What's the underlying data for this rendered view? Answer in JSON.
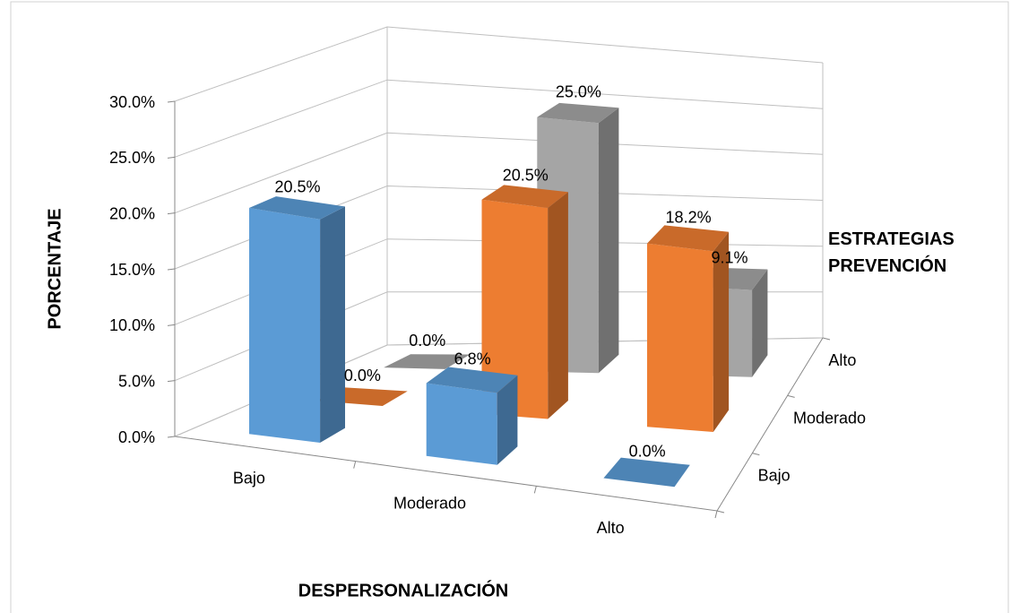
{
  "chart_data": {
    "type": "bar3d",
    "y_axis_label": "PORCENTAJE",
    "x_axis_label": "DESPERSONALIZACIÓN",
    "depth_axis_label": "ESTRATEGIAS PREVENCIÓN",
    "categories": [
      "Bajo",
      "Moderado",
      "Alto"
    ],
    "series": [
      {
        "name": "Bajo",
        "color": "#5b9bd5",
        "values": [
          20.5,
          6.8,
          0.0
        ],
        "value_labels": [
          "20.5%",
          "6.8%",
          "0.0%"
        ]
      },
      {
        "name": "Moderado",
        "color": "#ed7d31",
        "values": [
          0.0,
          20.5,
          18.2
        ],
        "value_labels": [
          "0.0%",
          "20.5%",
          "18.2%"
        ]
      },
      {
        "name": "Alto",
        "color": "#a5a5a5",
        "values": [
          0.0,
          25.0,
          9.1
        ],
        "value_labels": [
          "0.0%",
          "25.0%",
          "9.1%"
        ]
      }
    ],
    "ylim": [
      0,
      30
    ],
    "yticks": [
      {
        "value": 0,
        "label": "0.0%"
      },
      {
        "value": 5,
        "label": "5.0%"
      },
      {
        "value": 10,
        "label": "10.0%"
      },
      {
        "value": 15,
        "label": "15.0%"
      },
      {
        "value": 20,
        "label": "20.0%"
      },
      {
        "value": 25,
        "label": "25.0%"
      },
      {
        "value": 30,
        "label": "30.0%"
      }
    ],
    "grid": true
  }
}
